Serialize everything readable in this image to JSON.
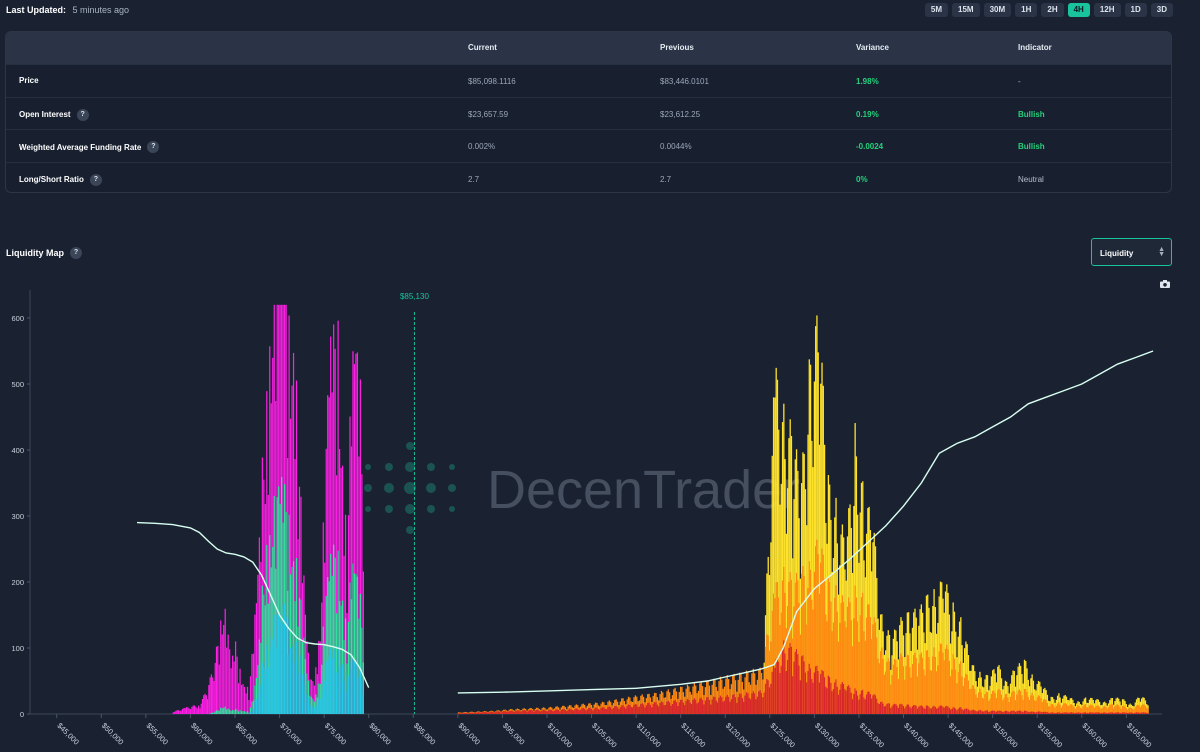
{
  "header": {
    "last_updated_label": "Last Updated:",
    "last_updated_value": "5 minutes ago",
    "timeframes": [
      "5M",
      "15M",
      "30M",
      "1H",
      "2H",
      "4H",
      "12H",
      "1D",
      "3D"
    ],
    "active_timeframe": "4H"
  },
  "table": {
    "columns": [
      "",
      "Current",
      "Previous",
      "Variance",
      "Indicator"
    ],
    "rows": [
      {
        "label": "Price",
        "help": false,
        "current": "$85,098.1116",
        "previous": "$83,446.0101",
        "variance": "1.98%",
        "indicator": "-"
      },
      {
        "label": "Open Interest",
        "help": true,
        "current": "$23,657.59",
        "previous": "$23,612.25",
        "variance": "0.19%",
        "indicator": "Bullish"
      },
      {
        "label": "Weighted Average Funding Rate",
        "help": true,
        "current": "0.002%",
        "previous": "0.0044%",
        "variance": "-0.0024",
        "indicator": "Bullish"
      },
      {
        "label": "Long/Short Ratio",
        "help": true,
        "current": "2.7",
        "previous": "2.7",
        "variance": "0%",
        "indicator": "Neutral"
      }
    ],
    "help_glyph": "?"
  },
  "liquidity_map": {
    "title": "Liquidity Map",
    "select_value": "Liquidity",
    "camera_icon": "camera-icon",
    "watermark": "DecenTrader"
  },
  "colors": {
    "accent": "#19c39b",
    "green": "#25d07a",
    "magenta": "#ff1fe6",
    "mint": "#2de59d",
    "cyan": "#22cbe8",
    "yellow": "#ffe22a",
    "orange": "#ff8a12",
    "red": "#d8262a",
    "cumulative_line": "#d8fff0"
  },
  "chart_data": {
    "type": "bar",
    "current_price_label": "$85,130",
    "current_price": 85130,
    "ylim": [
      0,
      610
    ],
    "yticks": [
      0,
      100,
      200,
      300,
      400,
      500,
      600
    ],
    "xlim": [
      42000,
      169000
    ],
    "xtick_values": [
      45000,
      50000,
      55000,
      60000,
      65000,
      70000,
      75000,
      80000,
      85000,
      90000,
      95000,
      100000,
      105000,
      110000,
      115000,
      120000,
      125000,
      130000,
      135000,
      140000,
      145000,
      150000,
      155000,
      160000,
      165000
    ],
    "xtick_labels": [
      "$45,000",
      "$50,000",
      "$55,000",
      "$60,000",
      "$65,000",
      "$70,000",
      "$75,000",
      "$80,000",
      "$85,000",
      "$90,000",
      "$95,000",
      "$100,000",
      "$105,000",
      "$110,000",
      "$115,000",
      "$120,000",
      "$125,000",
      "$130,000",
      "$135,000",
      "$140,000",
      "$145,000",
      "$150,000",
      "$155,000",
      "$160,000",
      "$165,000"
    ],
    "grid": false,
    "long_side": {
      "prices": [
        58000,
        59500,
        61000,
        62000,
        63000,
        63500,
        64000,
        64500,
        65000,
        65500,
        66000,
        66500,
        67000,
        67500,
        68000,
        68500,
        69000,
        69500,
        70000,
        70500,
        71000,
        71500,
        72000,
        72500,
        73000,
        73500,
        74000,
        74500,
        75000,
        75500,
        76000,
        76500,
        77000,
        77500,
        78000,
        78500,
        79000,
        79500
      ],
      "magenta": [
        3,
        8,
        12,
        35,
        90,
        140,
        115,
        60,
        85,
        55,
        40,
        30,
        90,
        170,
        300,
        420,
        530,
        560,
        590,
        600,
        480,
        520,
        360,
        200,
        90,
        40,
        60,
        120,
        280,
        430,
        460,
        470,
        350,
        200,
        420,
        450,
        390,
        220
      ],
      "mint": [
        0,
        0,
        0,
        0,
        5,
        10,
        8,
        4,
        6,
        5,
        4,
        3,
        20,
        60,
        150,
        220,
        250,
        260,
        280,
        270,
        240,
        220,
        180,
        110,
        50,
        20,
        25,
        50,
        130,
        180,
        200,
        195,
        160,
        100,
        180,
        175,
        140,
        80
      ],
      "cyan": [
        0,
        0,
        0,
        0,
        0,
        0,
        0,
        0,
        0,
        0,
        0,
        0,
        8,
        25,
        60,
        90,
        110,
        120,
        125,
        130,
        115,
        100,
        85,
        60,
        25,
        10,
        12,
        25,
        60,
        75,
        80,
        82,
        70,
        45,
        70,
        65,
        55,
        30
      ]
    },
    "short_side": {
      "prices": [
        90000,
        92000,
        94000,
        96000,
        98000,
        100000,
        102000,
        104000,
        106000,
        108000,
        110000,
        112000,
        114000,
        116000,
        118000,
        120000,
        122000,
        124000,
        125500,
        126500,
        127500,
        128500,
        129500,
        130500,
        131500,
        132500,
        133500,
        134500,
        135500,
        136500,
        137500,
        138500,
        139500,
        140500,
        141500,
        142500,
        143500,
        144500,
        145500,
        146500,
        147500,
        148500,
        149500,
        150500,
        151500,
        152500,
        153500,
        154500,
        155500,
        156500,
        157500,
        158500,
        159500,
        160500,
        161500,
        162500,
        163500,
        164500,
        165500,
        166500,
        167500
      ],
      "yellow": [
        0,
        0,
        0,
        0,
        0,
        0,
        0,
        0,
        0,
        0,
        0,
        0,
        0,
        0,
        0,
        0,
        0,
        0,
        410,
        380,
        330,
        280,
        460,
        470,
        280,
        250,
        200,
        340,
        260,
        230,
        120,
        90,
        110,
        130,
        120,
        140,
        150,
        160,
        130,
        110,
        60,
        50,
        45,
        60,
        40,
        55,
        65,
        45,
        35,
        20,
        25,
        20,
        15,
        20,
        18,
        15,
        20,
        18,
        12,
        22,
        15
      ],
      "orange": [
        2,
        3,
        4,
        6,
        7,
        8,
        10,
        12,
        14,
        18,
        22,
        25,
        30,
        35,
        40,
        45,
        50,
        55,
        150,
        180,
        160,
        170,
        190,
        210,
        160,
        150,
        130,
        150,
        140,
        120,
        80,
        60,
        70,
        75,
        70,
        75,
        80,
        85,
        70,
        60,
        35,
        30,
        25,
        30,
        25,
        28,
        30,
        25,
        20,
        12,
        14,
        12,
        10,
        12,
        10,
        10,
        12,
        10,
        8,
        12,
        10
      ],
      "red": [
        1,
        2,
        3,
        4,
        5,
        5,
        6,
        7,
        8,
        10,
        12,
        14,
        16,
        18,
        20,
        22,
        25,
        28,
        60,
        90,
        80,
        70,
        60,
        55,
        45,
        40,
        35,
        30,
        28,
        25,
        15,
        12,
        12,
        12,
        10,
        10,
        10,
        10,
        8,
        8,
        5,
        5,
        4,
        4,
        4,
        4,
        4,
        3,
        3,
        2,
        2,
        2,
        2,
        2,
        2,
        2,
        2,
        2,
        2,
        2,
        2
      ]
    },
    "cumulative_long": {
      "x": [
        54000,
        56000,
        58000,
        60000,
        61000,
        62000,
        63000,
        64000,
        65000,
        66000,
        67000,
        68000,
        69000,
        70000,
        71000,
        72000,
        73000,
        74000,
        75000,
        76000,
        77000,
        78000,
        79000,
        80000
      ],
      "y": [
        290,
        289,
        287,
        282,
        275,
        262,
        250,
        244,
        242,
        238,
        230,
        210,
        180,
        150,
        130,
        115,
        108,
        106,
        105,
        102,
        98,
        90,
        70,
        40
      ]
    },
    "cumulative_short": {
      "x": [
        90000,
        95000,
        100000,
        105000,
        110000,
        115000,
        118000,
        120000,
        122000,
        124000,
        125500,
        126500,
        128000,
        130000,
        132000,
        134000,
        136000,
        138000,
        140000,
        142000,
        144000,
        146000,
        148000,
        150000,
        152000,
        154000,
        156000,
        158000,
        160000,
        162000,
        164000,
        166000,
        168000
      ],
      "y": [
        32,
        33,
        35,
        37,
        39,
        45,
        50,
        56,
        62,
        68,
        75,
        100,
        155,
        190,
        212,
        235,
        260,
        285,
        315,
        350,
        395,
        410,
        420,
        435,
        450,
        470,
        480,
        490,
        500,
        515,
        530,
        540,
        550
      ]
    }
  }
}
